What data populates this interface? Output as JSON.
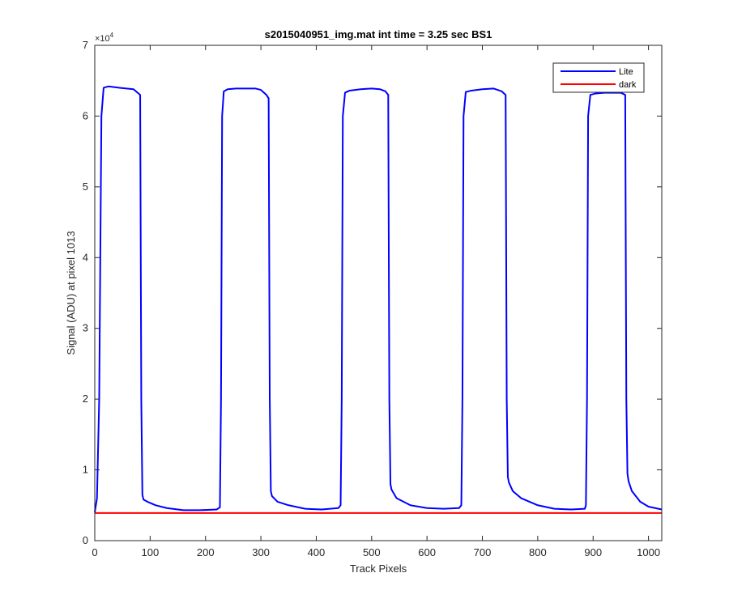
{
  "chart_data": {
    "type": "line",
    "title": "s2015040951_img.mat int time = 3.25 sec   BS1",
    "xlabel": "Track Pixels",
    "ylabel": "Signal (ADU) at pixel 1013",
    "xlim": [
      0,
      1024
    ],
    "ylim": [
      0,
      70000
    ],
    "xticks": [
      0,
      100,
      200,
      300,
      400,
      500,
      600,
      700,
      800,
      900,
      1000
    ],
    "xtick_labels": [
      "0",
      "100",
      "200",
      "300",
      "400",
      "500",
      "600",
      "700",
      "800",
      "900",
      "1000"
    ],
    "yticks": [
      0,
      10000,
      20000,
      30000,
      40000,
      50000,
      60000,
      70000
    ],
    "ytick_labels": [
      "0",
      "1",
      "2",
      "3",
      "4",
      "5",
      "6",
      "7"
    ],
    "y_exponent_label": "×10",
    "y_exponent_power": "4",
    "grid": false,
    "legend_location": "top-right",
    "series": [
      {
        "name": "Lite",
        "color": "#0000ff",
        "x": [
          0,
          4,
          8,
          12,
          16,
          25,
          45,
          70,
          82,
          84,
          86,
          88,
          95,
          110,
          130,
          160,
          190,
          220,
          226,
          228,
          230,
          233,
          240,
          255,
          270,
          290,
          300,
          310,
          314,
          316,
          318,
          320,
          330,
          350,
          380,
          410,
          440,
          444,
          446,
          448,
          452,
          460,
          480,
          500,
          515,
          525,
          530,
          532,
          534,
          536,
          545,
          570,
          600,
          630,
          658,
          662,
          664,
          666,
          670,
          680,
          700,
          720,
          735,
          742,
          744,
          746,
          748,
          755,
          770,
          800,
          830,
          860,
          885,
          887,
          889,
          891,
          895,
          905,
          920,
          935,
          950,
          958,
          960,
          962,
          964,
          970,
          985,
          1000,
          1024
        ],
        "y": [
          4000,
          6000,
          20000,
          60000,
          64000,
          64200,
          64000,
          63800,
          63000,
          20000,
          6500,
          5800,
          5500,
          5000,
          4600,
          4300,
          4300,
          4400,
          4700,
          20000,
          60000,
          63500,
          63800,
          63900,
          63900,
          63900,
          63700,
          63000,
          62500,
          20000,
          7000,
          6300,
          5500,
          5000,
          4500,
          4400,
          4600,
          5000,
          20000,
          60000,
          63300,
          63600,
          63800,
          63900,
          63800,
          63500,
          63000,
          20000,
          8000,
          7200,
          6000,
          5000,
          4600,
          4500,
          4600,
          5000,
          20000,
          60000,
          63400,
          63600,
          63800,
          63900,
          63500,
          63000,
          20000,
          9000,
          8200,
          7000,
          6000,
          5000,
          4500,
          4400,
          4500,
          5000,
          20000,
          60000,
          63000,
          63200,
          63300,
          63300,
          63300,
          63000,
          20000,
          9500,
          8400,
          7000,
          5500,
          4800,
          4400
        ]
      },
      {
        "name": "dark",
        "color": "#ff0000",
        "x": [
          0,
          1024
        ],
        "y": [
          3900,
          3900
        ]
      }
    ]
  }
}
